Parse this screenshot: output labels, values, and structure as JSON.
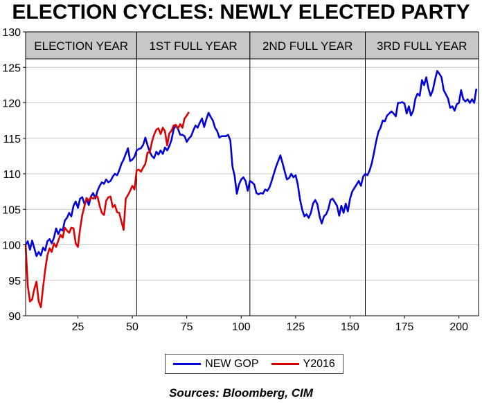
{
  "chart_data": {
    "type": "line",
    "title": "ELECTION CYCLES: NEWLY ELECTED PARTY",
    "xlim": [
      1,
      209
    ],
    "ylim": [
      90,
      130
    ],
    "x_ticks": [
      25,
      50,
      75,
      100,
      125,
      150,
      175,
      200
    ],
    "y_ticks": [
      90,
      95,
      100,
      105,
      110,
      115,
      120,
      125,
      130
    ],
    "grid": true,
    "legend_position": "bottom",
    "phases": [
      {
        "label": "ELECTION YEAR",
        "start": 1,
        "end": 52
      },
      {
        "label": "1ST FULL YEAR",
        "start": 52,
        "end": 104
      },
      {
        "label": "2ND FULL YEAR",
        "start": 104,
        "end": 157
      },
      {
        "label": "3RD FULL YEAR",
        "start": 157,
        "end": 209
      }
    ],
    "series": [
      {
        "name": "NEW GOP",
        "color": "#0000dd",
        "points": [
          [
            1,
            100
          ],
          [
            2,
            100.5
          ],
          [
            3,
            99.3
          ],
          [
            4,
            100.6
          ],
          [
            5,
            99.5
          ],
          [
            6,
            98.4
          ],
          [
            7,
            99
          ],
          [
            8,
            98.5
          ],
          [
            9,
            99.6
          ],
          [
            10,
            99.2
          ],
          [
            11,
            100.5
          ],
          [
            12,
            100.8
          ],
          [
            13,
            100.2
          ],
          [
            14,
            101
          ],
          [
            15,
            102.3
          ],
          [
            16,
            101.5
          ],
          [
            17,
            102.2
          ],
          [
            18,
            102
          ],
          [
            19,
            103.4
          ],
          [
            20,
            103.8
          ],
          [
            21,
            104.5
          ],
          [
            22,
            104
          ],
          [
            23,
            105.5
          ],
          [
            24,
            106.1
          ],
          [
            25,
            105.2
          ],
          [
            26,
            106.5
          ],
          [
            27,
            106.7
          ],
          [
            28,
            105.8
          ],
          [
            29,
            106.4
          ],
          [
            30,
            105.6
          ],
          [
            31,
            106.8
          ],
          [
            32,
            107.3
          ],
          [
            33,
            106.5
          ],
          [
            34,
            107.6
          ],
          [
            35,
            108.3
          ],
          [
            36,
            108.8
          ],
          [
            37,
            108.6
          ],
          [
            38,
            109.2
          ],
          [
            39,
            108.8
          ],
          [
            40,
            109
          ],
          [
            41,
            109.6
          ],
          [
            42,
            110
          ],
          [
            43,
            109.8
          ],
          [
            44,
            110.5
          ],
          [
            45,
            111.4
          ],
          [
            46,
            112
          ],
          [
            47,
            112.8
          ],
          [
            48,
            113.6
          ],
          [
            49,
            111.8
          ],
          [
            50,
            112
          ],
          [
            51,
            112.4
          ],
          [
            52,
            113.3
          ],
          [
            53,
            113.5
          ],
          [
            54,
            113.6
          ],
          [
            55,
            114.1
          ],
          [
            56,
            115.1
          ],
          [
            57,
            114
          ],
          [
            58,
            113.1
          ],
          [
            59,
            112.5
          ],
          [
            60,
            112.2
          ],
          [
            61,
            113.1
          ],
          [
            62,
            112.7
          ],
          [
            63,
            113.3
          ],
          [
            64,
            112.8
          ],
          [
            65,
            113.7
          ],
          [
            66,
            113.3
          ],
          [
            67,
            113.9
          ],
          [
            68,
            114.8
          ],
          [
            69,
            116.3
          ],
          [
            70,
            116.8
          ],
          [
            71,
            116.3
          ],
          [
            72,
            115.5
          ],
          [
            73,
            115.5
          ],
          [
            74,
            115.3
          ],
          [
            75,
            114.5
          ],
          [
            76,
            115
          ],
          [
            77,
            115.3
          ],
          [
            78,
            116.1
          ],
          [
            79,
            116.8
          ],
          [
            80,
            116.5
          ],
          [
            81,
            117.2
          ],
          [
            82,
            117.8
          ],
          [
            83,
            116.6
          ],
          [
            84,
            117.7
          ],
          [
            85,
            118.6
          ],
          [
            86,
            118
          ],
          [
            87,
            117.5
          ],
          [
            88,
            116.5
          ],
          [
            89,
            116
          ],
          [
            90,
            115.1
          ],
          [
            91,
            115.3
          ],
          [
            92,
            115.3
          ],
          [
            93,
            115.3
          ],
          [
            94,
            115.5
          ],
          [
            95,
            114.7
          ],
          [
            96,
            111
          ],
          [
            97,
            109.7
          ],
          [
            98,
            107.2
          ],
          [
            99,
            108.5
          ],
          [
            100,
            109.2
          ],
          [
            101,
            109.5
          ],
          [
            102,
            109
          ],
          [
            103,
            107.6
          ],
          [
            104,
            109
          ],
          [
            105,
            108.8
          ],
          [
            106,
            108.5
          ],
          [
            107,
            107.3
          ],
          [
            108,
            107.1
          ],
          [
            109,
            107.3
          ],
          [
            110,
            107.2
          ],
          [
            111,
            107.8
          ],
          [
            112,
            107.6
          ],
          [
            113,
            108.1
          ],
          [
            114,
            109
          ],
          [
            115,
            110
          ],
          [
            116,
            111
          ],
          [
            117,
            111.8
          ],
          [
            118,
            112.6
          ],
          [
            119,
            111.5
          ],
          [
            120,
            110.3
          ],
          [
            121,
            109.2
          ],
          [
            122,
            109.4
          ],
          [
            123,
            110
          ],
          [
            124,
            109.5
          ],
          [
            125,
            109.8
          ],
          [
            126,
            108.5
          ],
          [
            127,
            106.4
          ],
          [
            128,
            105
          ],
          [
            129,
            104
          ],
          [
            130,
            104.3
          ],
          [
            131,
            103.8
          ],
          [
            132,
            104.5
          ],
          [
            133,
            105.8
          ],
          [
            134,
            106.3
          ],
          [
            135,
            105.7
          ],
          [
            136,
            104
          ],
          [
            137,
            103
          ],
          [
            138,
            104
          ],
          [
            139,
            104.3
          ],
          [
            140,
            105
          ],
          [
            141,
            106.3
          ],
          [
            142,
            106.5
          ],
          [
            143,
            106
          ],
          [
            144,
            105.5
          ],
          [
            145,
            104.1
          ],
          [
            146,
            105.5
          ],
          [
            147,
            104.5
          ],
          [
            148,
            105.8
          ],
          [
            149,
            104.7
          ],
          [
            150,
            106.5
          ],
          [
            151,
            107.5
          ],
          [
            152,
            108
          ],
          [
            153,
            108.5
          ],
          [
            154,
            109
          ],
          [
            155,
            108.3
          ],
          [
            156,
            109.6
          ],
          [
            157,
            110
          ],
          [
            158,
            109.8
          ],
          [
            159,
            110.5
          ],
          [
            160,
            111.5
          ],
          [
            161,
            113
          ],
          [
            162,
            114.6
          ],
          [
            163,
            115.9
          ],
          [
            164,
            116.5
          ],
          [
            165,
            117.5
          ],
          [
            166,
            117.4
          ],
          [
            167,
            118.2
          ],
          [
            168,
            118.5
          ],
          [
            169,
            118.8
          ],
          [
            170,
            118.5
          ],
          [
            171,
            118.1
          ],
          [
            172,
            120
          ],
          [
            173,
            120
          ],
          [
            174,
            120.1
          ],
          [
            175,
            119.9
          ],
          [
            176,
            118.5
          ],
          [
            177,
            119.5
          ],
          [
            178,
            118.2
          ],
          [
            179,
            118.9
          ],
          [
            180,
            120.6
          ],
          [
            181,
            121.3
          ],
          [
            182,
            121
          ],
          [
            183,
            123.2
          ],
          [
            184,
            122.5
          ],
          [
            185,
            123.6
          ],
          [
            186,
            122
          ],
          [
            187,
            121
          ],
          [
            188,
            121.8
          ],
          [
            189,
            123.2
          ],
          [
            190,
            124.5
          ],
          [
            191,
            124.1
          ],
          [
            192,
            123.6
          ],
          [
            193,
            121.8
          ],
          [
            194,
            121.2
          ],
          [
            195,
            120.6
          ],
          [
            196,
            119.3
          ],
          [
            197,
            119.5
          ],
          [
            198,
            118.9
          ],
          [
            199,
            119.8
          ],
          [
            200,
            120
          ],
          [
            201,
            121.8
          ],
          [
            202,
            120.5
          ],
          [
            203,
            120.2
          ],
          [
            204,
            120.5
          ],
          [
            205,
            120
          ],
          [
            206,
            120.5
          ],
          [
            207,
            120
          ],
          [
            208,
            122
          ]
        ]
      },
      {
        "name": "Y2016",
        "color": "#dd0000",
        "points": [
          [
            1,
            100
          ],
          [
            2,
            94.2
          ],
          [
            3,
            92
          ],
          [
            4,
            92.3
          ],
          [
            5,
            93.8
          ],
          [
            6,
            94.8
          ],
          [
            7,
            92
          ],
          [
            8,
            91.2
          ],
          [
            9,
            94
          ],
          [
            10,
            96.5
          ],
          [
            11,
            98.5
          ],
          [
            12,
            99.5
          ],
          [
            13,
            99
          ],
          [
            14,
            100.2
          ],
          [
            15,
            99.7
          ],
          [
            16,
            100.6
          ],
          [
            17,
            101.4
          ],
          [
            18,
            101
          ],
          [
            19,
            102.4
          ],
          [
            20,
            102
          ],
          [
            21,
            101.7
          ],
          [
            22,
            102.4
          ],
          [
            23,
            102.3
          ],
          [
            24,
            100.2
          ],
          [
            25,
            99.7
          ],
          [
            26,
            102.2
          ],
          [
            27,
            104.2
          ],
          [
            28,
            105.4
          ],
          [
            29,
            106.6
          ],
          [
            30,
            106.2
          ],
          [
            31,
            106.7
          ],
          [
            32,
            106.5
          ],
          [
            33,
            106.7
          ],
          [
            34,
            106.8
          ],
          [
            35,
            105.5
          ],
          [
            36,
            104.5
          ],
          [
            37,
            104.2
          ],
          [
            38,
            106.2
          ],
          [
            39,
            106.7
          ],
          [
            40,
            106.8
          ],
          [
            41,
            105.3
          ],
          [
            42,
            105.6
          ],
          [
            43,
            104.6
          ],
          [
            44,
            104.5
          ],
          [
            45,
            103.3
          ],
          [
            46,
            102.1
          ],
          [
            47,
            106.5
          ],
          [
            48,
            107
          ],
          [
            49,
            107.6
          ],
          [
            50,
            108.3
          ],
          [
            51,
            107.8
          ],
          [
            52,
            110.5
          ],
          [
            53,
            110.6
          ],
          [
            54,
            110.3
          ],
          [
            55,
            110.9
          ],
          [
            56,
            111.4
          ],
          [
            57,
            113
          ],
          [
            58,
            113
          ],
          [
            59,
            114.5
          ],
          [
            60,
            115.5
          ],
          [
            61,
            116.2
          ],
          [
            62,
            116.4
          ],
          [
            63,
            115.6
          ],
          [
            64,
            116.5
          ],
          [
            65,
            116
          ],
          [
            66,
            114
          ],
          [
            67,
            115.7
          ],
          [
            68,
            116.1
          ],
          [
            69,
            116.8
          ],
          [
            70,
            116.9
          ],
          [
            71,
            116.4
          ],
          [
            72,
            117
          ],
          [
            73,
            116.5
          ],
          [
            74,
            117.8
          ],
          [
            75,
            118.2
          ],
          [
            76,
            118.7
          ]
        ]
      }
    ],
    "source": "Sources:  Bloomberg, CIM"
  }
}
